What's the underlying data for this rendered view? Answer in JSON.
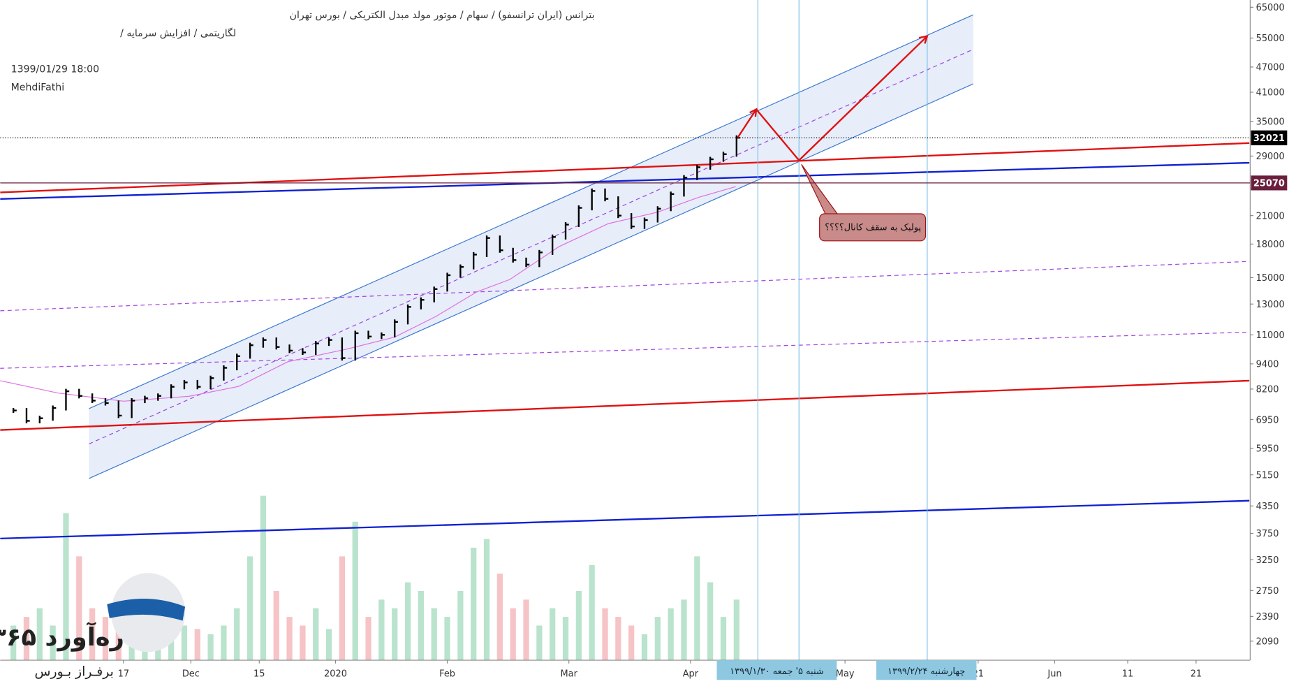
{
  "header": {
    "title": "بترانس (ایران ترانسفو) / سهام / موتور مولد مبدل الکتریکی / بورس تهران",
    "subtitle": "لگاریتمی / افزایش سرمایه /",
    "datetime": "1399/01/29 18:00",
    "author": "MehdiFathi"
  },
  "annotation": "پولبک به سقف کانال؟؟؟؟",
  "date_boxes": [
    "شنبه ۵' جمعه ۱۳۹۹/۱/۳۰",
    "چهارشنبه ۱۳۹۹/۲/۲۴"
  ],
  "logo": {
    "name": "ره‌آورد ۳۶۵",
    "tagline": "برفـراز بـورس"
  },
  "chart_data": {
    "type": "bar-ohlc",
    "log_scale": true,
    "xlim": [
      0,
      190
    ],
    "xticks": [
      {
        "value": 18.75,
        "label": "17"
      },
      {
        "value": 29,
        "label": "Dec"
      },
      {
        "value": 39.4,
        "label": "15"
      },
      {
        "value": 51,
        "label": "2020"
      },
      {
        "value": 68,
        "label": "Feb"
      },
      {
        "value": 86.5,
        "label": "Mar"
      },
      {
        "value": 105,
        "label": "Apr"
      },
      {
        "value": 128.5,
        "label": "May"
      },
      {
        "value": 148.75,
        "label": "21"
      },
      {
        "value": 160.4,
        "label": "Jun"
      },
      {
        "value": 171.5,
        "label": "11"
      },
      {
        "value": 181.9,
        "label": "21"
      }
    ],
    "ylim": [
      1885,
      67600
    ],
    "yticks": [
      65000,
      55000,
      47000,
      41000,
      35000,
      29000,
      21000,
      18000,
      15000,
      13000,
      11000,
      9400,
      8200,
      6950,
      5950,
      5150,
      4350,
      3750,
      3250,
      2750,
      2390,
      2090
    ],
    "price_lines": [
      {
        "value": 32021,
        "color": "#000000"
      },
      {
        "value": 25070,
        "color": "#6b1e3c"
      }
    ],
    "x": [
      2,
      4,
      6,
      8,
      10,
      12,
      14,
      16,
      18,
      20,
      22,
      24,
      26,
      28,
      30,
      32,
      34,
      36,
      38,
      40,
      42,
      44,
      46,
      48,
      50,
      52,
      54,
      56,
      58,
      60,
      62,
      64,
      66,
      68,
      70,
      72,
      74,
      76,
      78,
      80,
      82,
      84,
      86,
      88,
      90,
      92,
      94,
      96,
      98,
      100,
      102,
      104,
      106,
      108,
      110,
      112
    ],
    "series": [
      {
        "color": "#000000",
        "values": [
          7300,
          6900,
          7000,
          7400,
          8100,
          7900,
          7700,
          7600,
          7100,
          7700,
          7800,
          7900,
          8300,
          8500,
          8300,
          8700,
          9200,
          9800,
          10400,
          10700,
          10300,
          10100,
          10000,
          10500,
          10700,
          9700,
          11100,
          10900,
          11000,
          11800,
          12800,
          13300,
          14100,
          15200,
          15900,
          17000,
          18600,
          17400,
          16500,
          16100,
          17200,
          18700,
          20000,
          21900,
          24000,
          23000,
          21000,
          19800,
          20500,
          21800,
          23600,
          25800,
          27300,
          28500,
          29300,
          32021
        ]
      },
      {
        "name_role": "volume",
        "color": "#a8dcc0",
        "values": [
          20,
          25,
          30,
          20,
          85,
          60,
          30,
          25,
          20,
          15,
          18,
          22,
          25,
          20,
          18,
          15,
          20,
          30,
          60,
          95,
          40,
          25,
          20,
          30,
          18,
          60,
          80,
          25,
          35,
          30,
          45,
          40,
          30,
          25,
          40,
          65,
          70,
          50,
          30,
          35,
          20,
          30,
          25,
          40,
          55,
          30,
          25,
          20,
          15,
          25,
          30,
          35,
          60,
          45,
          25,
          35
        ]
      }
    ]
  }
}
